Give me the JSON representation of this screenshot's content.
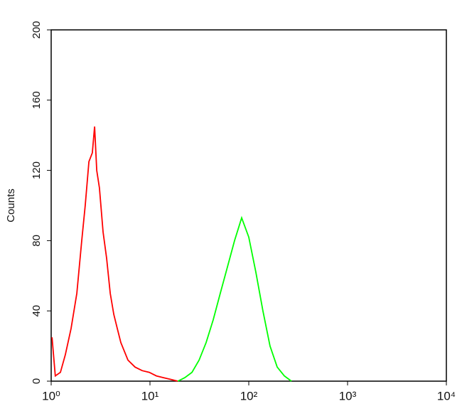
{
  "chart_data": {
    "type": "line",
    "y_label": "Counts",
    "log_x": true,
    "xlim": [
      1,
      10000
    ],
    "xticks": [
      {
        "value": 1,
        "label": "10⁰"
      },
      {
        "value": 10,
        "label": "10¹"
      },
      {
        "value": 100,
        "label": "10²"
      },
      {
        "value": 1000,
        "label": "10³"
      },
      {
        "value": 10000,
        "label": "10⁴"
      }
    ],
    "ylim": [
      0,
      200
    ],
    "yticks": [
      0,
      40,
      80,
      120,
      160,
      200
    ],
    "series": [
      {
        "color": "#ff0000",
        "x": [
          1.02,
          1.1,
          1.24,
          1.39,
          1.59,
          1.82,
          2.04,
          2.21,
          2.41,
          2.61,
          2.75,
          2.89,
          3.08,
          3.35,
          3.64,
          3.96,
          4.3,
          4.67,
          5.07,
          5.98,
          7.06,
          8.33,
          9.84,
          11.6,
          13.7,
          16.2,
          19.1
        ],
        "values": [
          25,
          3,
          5,
          15,
          30,
          50,
          80,
          100,
          125,
          130,
          145,
          120,
          110,
          85,
          70,
          50,
          38,
          30,
          22,
          12,
          8,
          6,
          5,
          3,
          2,
          1,
          0
        ]
      },
      {
        "color": "#00ff00",
        "x": [
          19.1,
          22.5,
          26.6,
          31.4,
          37.0,
          43.7,
          51.5,
          60.8,
          71.8,
          84.7,
          100,
          118,
          139,
          164,
          194,
          229,
          270
        ],
        "values": [
          0,
          2,
          5,
          12,
          22,
          35,
          50,
          65,
          80,
          93,
          82,
          62,
          40,
          20,
          8,
          3,
          0
        ]
      }
    ]
  }
}
